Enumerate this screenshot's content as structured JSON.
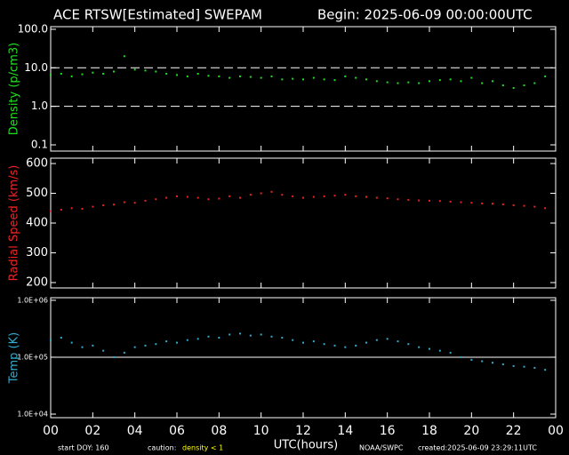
{
  "header": {
    "title": "ACE RTSW[Estimated] SWEPAM",
    "begin": "Begin: 2025-06-09 00:00:00UTC"
  },
  "footer": {
    "start": "start DOY: 160",
    "caution": "caution:",
    "caution_note": "density < 1",
    "source": "NOAA/SWPC",
    "created": "created:2025-06-09 23:29:11UTC"
  },
  "chart_data": [
    {
      "type": "scatter",
      "ylabel": "Density (p/cm3)",
      "log": true,
      "color": "#22dd22",
      "xlim": [
        0,
        24
      ],
      "ylim": [
        0.069,
        117
      ],
      "yticks": [
        {
          "value": 100,
          "label": "100.0"
        },
        {
          "value": 10,
          "label": "10.0"
        },
        {
          "value": 1,
          "label": "1.0"
        },
        0.1
      ],
      "hlines": [
        10,
        1
      ],
      "hline_style": "dashed",
      "x": [
        0,
        0.5,
        1,
        1.5,
        2,
        2.5,
        3,
        3.5,
        4,
        4.5,
        5,
        5.5,
        6,
        6.5,
        7,
        7.5,
        8,
        8.5,
        9,
        9.5,
        10,
        10.5,
        11,
        11.5,
        12,
        12.5,
        13,
        13.5,
        14,
        14.5,
        15,
        15.5,
        16,
        16.5,
        17,
        17.5,
        18,
        18.5,
        19,
        19.5,
        20,
        20.5,
        21,
        21.5,
        22,
        22.5,
        23,
        23.5
      ],
      "values": [
        6.5,
        7,
        6,
        6.8,
        7.5,
        7,
        8,
        20,
        9,
        8.5,
        8,
        7,
        6.5,
        6,
        7,
        6.2,
        6,
        5.5,
        6,
        5.8,
        5.5,
        6,
        5,
        5.2,
        5,
        5.5,
        5,
        4.8,
        6,
        5.5,
        5,
        4.5,
        4.2,
        4,
        4.2,
        4,
        4.5,
        4.8,
        5,
        4.5,
        5.5,
        4,
        4.5,
        3.5,
        3,
        3.5,
        4,
        6
      ]
    },
    {
      "type": "scatter",
      "ylabel": "Radial Speed (km/s)",
      "log": false,
      "color": "#ee2222",
      "xlim": [
        0,
        24
      ],
      "ylim": [
        182,
        618
      ],
      "yticks": [
        200,
        300,
        400,
        500,
        600
      ],
      "x": [
        0,
        0.5,
        1,
        1.5,
        2,
        2.5,
        3,
        3.5,
        4,
        4.5,
        5,
        5.5,
        6,
        6.5,
        7,
        7.5,
        8,
        8.5,
        9,
        9.5,
        10,
        10.5,
        11,
        11.5,
        12,
        12.5,
        13,
        13.5,
        14,
        14.5,
        15,
        15.5,
        16,
        16.5,
        17,
        17.5,
        18,
        18.5,
        19,
        19.5,
        20,
        20.5,
        21,
        21.5,
        22,
        22.5,
        23,
        23.5
      ],
      "values": [
        440,
        445,
        450,
        448,
        455,
        460,
        462,
        470,
        468,
        475,
        480,
        485,
        490,
        488,
        485,
        480,
        482,
        490,
        485,
        495,
        500,
        505,
        495,
        490,
        485,
        488,
        490,
        492,
        495,
        490,
        488,
        485,
        483,
        480,
        478,
        476,
        475,
        474,
        472,
        470,
        468,
        466,
        465,
        463,
        460,
        458,
        455,
        450
      ]
    },
    {
      "type": "scatter",
      "ylabel": "Temp (K)",
      "xlabel": "UTC(hours)",
      "log": true,
      "color": "#33aacc",
      "xlim": [
        0,
        24
      ],
      "ylim": [
        8660,
        1110000
      ],
      "xticks": [
        {
          "value": 0,
          "label": "00"
        },
        {
          "value": 2,
          "label": "02"
        },
        {
          "value": 4,
          "label": "04"
        },
        {
          "value": 6,
          "label": "06"
        },
        {
          "value": 8,
          "label": "08"
        },
        10,
        12,
        14,
        16,
        18,
        20,
        22,
        {
          "value": 24,
          "label": "00"
        }
      ],
      "yticks": [
        {
          "value": 1000000,
          "label": "1.0E+06"
        },
        {
          "value": 100000,
          "label": "1.0E+05"
        },
        {
          "value": 10000,
          "label": "1.0E+04"
        }
      ],
      "hlines": [
        100000
      ],
      "hline_style": "solid",
      "x": [
        0,
        0.5,
        1,
        1.5,
        2,
        2.5,
        3,
        3.5,
        4,
        4.5,
        5,
        5.5,
        6,
        6.5,
        7,
        7.5,
        8,
        8.5,
        9,
        9.5,
        10,
        10.5,
        11,
        11.5,
        12,
        12.5,
        13,
        13.5,
        14,
        14.5,
        15,
        15.5,
        16,
        16.5,
        17,
        17.5,
        18,
        18.5,
        19,
        19.5,
        20,
        20.5,
        21,
        21.5,
        22,
        22.5,
        23,
        23.5
      ],
      "values": [
        200000,
        220000,
        180000,
        150000,
        160000,
        130000,
        100000,
        120000,
        150000,
        160000,
        170000,
        190000,
        180000,
        200000,
        210000,
        230000,
        220000,
        250000,
        260000,
        240000,
        250000,
        230000,
        220000,
        200000,
        180000,
        190000,
        170000,
        160000,
        150000,
        160000,
        180000,
        200000,
        210000,
        190000,
        170000,
        150000,
        140000,
        130000,
        120000,
        100000,
        90000,
        85000,
        80000,
        75000,
        70000,
        68000,
        65000,
        60000
      ]
    }
  ]
}
